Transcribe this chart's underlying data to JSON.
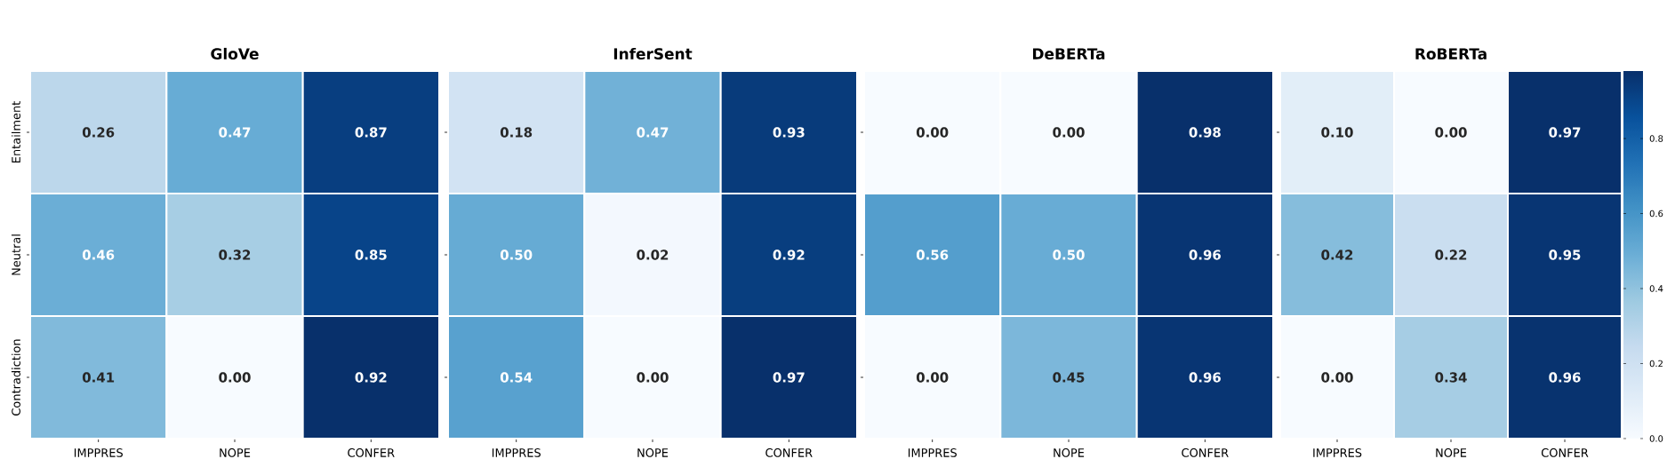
{
  "chart_data": [
    {
      "type": "heatmap",
      "title": "GloVe",
      "categories": [
        "IMPPRES",
        "NOPE",
        "CONFER"
      ],
      "y_categories": [
        "Entailment",
        "Neutral",
        "Contradiction"
      ],
      "data_labels": true,
      "cells": [
        [
          0.26,
          0.47,
          0.87
        ],
        [
          0.46,
          0.32,
          0.85
        ],
        [
          0.41,
          0.0,
          0.92
        ]
      ],
      "cell_labels": [
        [
          "0.26",
          "0.47",
          "0.87"
        ],
        [
          "0.46",
          "0.32",
          "0.85"
        ],
        [
          "0.41",
          "0.00",
          "0.92"
        ]
      ]
    },
    {
      "type": "heatmap",
      "title": "InferSent",
      "categories": [
        "IMPPRES",
        "NOPE",
        "CONFER"
      ],
      "y_categories": [
        null,
        null,
        null
      ],
      "data_labels": true,
      "tick_labels": "x",
      "cells": [
        [
          0.18,
          0.47,
          0.93
        ],
        [
          0.5,
          0.02,
          0.92
        ],
        [
          0.54,
          0.0,
          0.97
        ]
      ],
      "cell_labels": [
        [
          "0.18",
          "0.47",
          "0.93"
        ],
        [
          "0.50",
          "0.02",
          "0.92"
        ],
        [
          "0.54",
          "0.00",
          "0.97"
        ]
      ]
    },
    {
      "type": "heatmap",
      "title": "DeBERTa",
      "categories": [
        "IMPPRES",
        "NOPE",
        "CONFER"
      ],
      "y_categories": [
        null,
        null,
        null
      ],
      "data_labels": true,
      "tick_labels": "x",
      "cells": [
        [
          0.0,
          0.0,
          0.98
        ],
        [
          0.56,
          0.5,
          0.96
        ],
        [
          0.0,
          0.45,
          0.96
        ]
      ],
      "cell_labels": [
        [
          "0.00",
          "0.00",
          "0.98"
        ],
        [
          "0.56",
          "0.50",
          "0.96"
        ],
        [
          "0.00",
          "0.45",
          "0.96"
        ]
      ]
    },
    {
      "type": "heatmap",
      "title": "RoBERTa",
      "categories": [
        "IMPPRES",
        "NOPE",
        "CONFER"
      ],
      "y_categories": [
        null,
        null,
        null
      ],
      "data_labels": true,
      "tick_labels": "x",
      "cells": [
        [
          0.1,
          0.0,
          0.97
        ],
        [
          0.42,
          0.22,
          0.95
        ],
        [
          0.0,
          0.34,
          0.96
        ]
      ],
      "cell_labels": [
        [
          "0.10",
          "0.00",
          "0.97"
        ],
        [
          "0.42",
          "0.22",
          "0.95"
        ],
        [
          "0.00",
          "0.34",
          "0.96"
        ]
      ],
      "clim": [
        0,
        0.98
      ],
      "cticks": [
        {
          "value": 0,
          "label": "0.0"
        },
        {
          "value": 0.2,
          "label": "0.2"
        },
        {
          "value": 0.4,
          "label": "0.4"
        },
        {
          "value": 0.6,
          "label": "0.6"
        },
        {
          "value": 0.8,
          "label": "0.8"
        }
      ]
    }
  ]
}
